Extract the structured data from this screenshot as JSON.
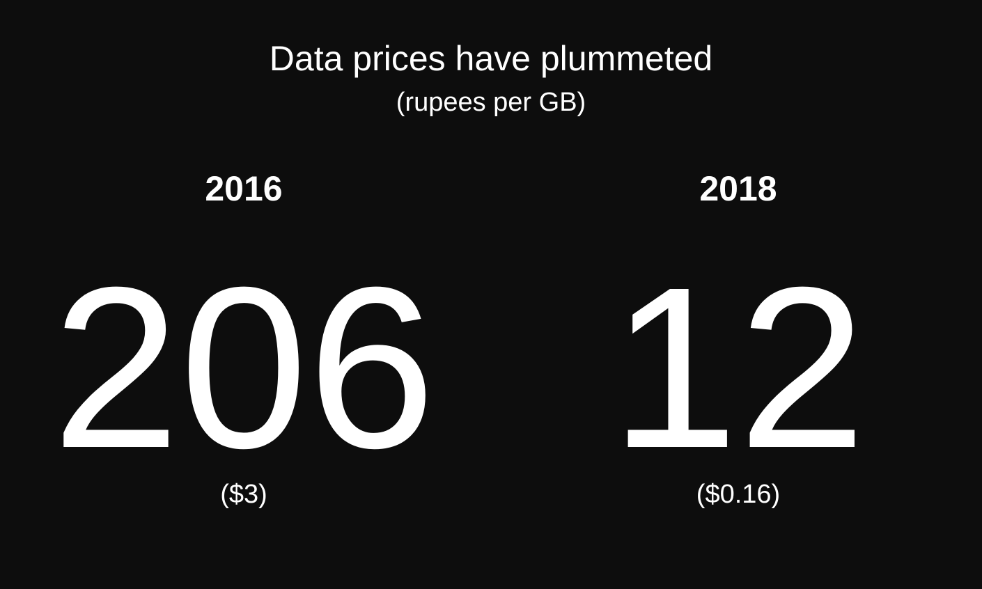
{
  "title": "Data prices have plummeted",
  "subtitle": "(rupees per GB)",
  "items": [
    {
      "year": "2016",
      "value": "206",
      "usd": "($3)"
    },
    {
      "year": "2018",
      "value": "12",
      "usd": "($0.16)"
    }
  ],
  "colors": {
    "background": "#0d0d0d",
    "text": "#ffffff"
  }
}
